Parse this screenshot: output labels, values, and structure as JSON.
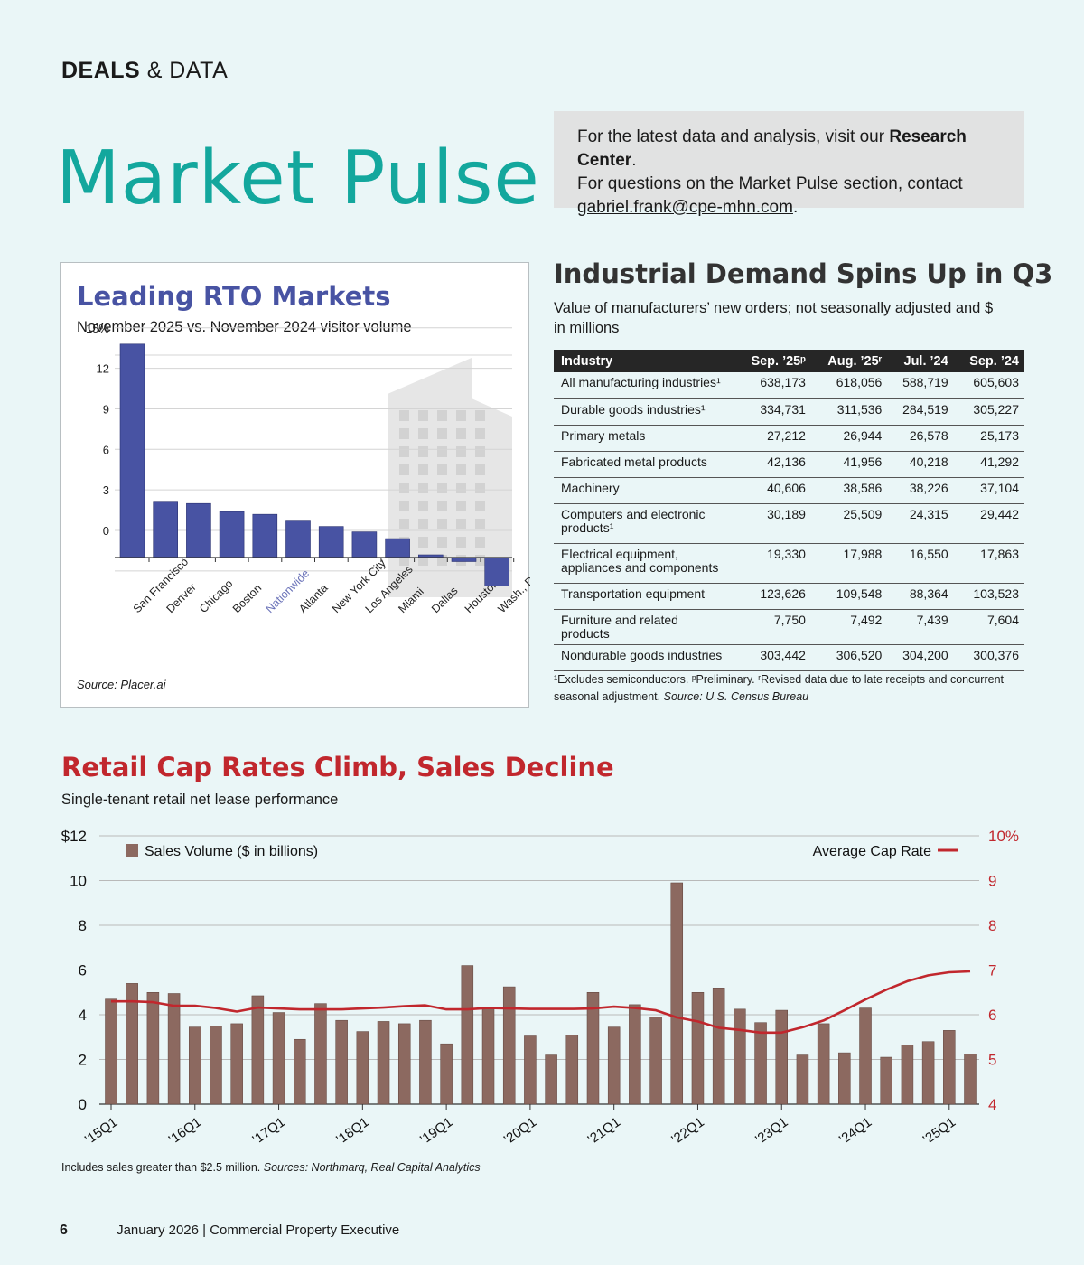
{
  "header": {
    "section_bold": "DEALS",
    "section_rest": "& DATA",
    "title": "Market Pulse"
  },
  "info": {
    "line1_pre": "For the latest data and analysis, visit our ",
    "line1_bold": "Research Center",
    "line1_post": ".",
    "line2": "For questions on the Market Pulse section, contact",
    "email": "gabriel.frank@cpe-mhn.com",
    "email_post": "."
  },
  "colors": {
    "teal": "#13a79d",
    "rto_bar": "#4853a3",
    "retail_red": "#c1272d",
    "retail_bar": "#8c6960",
    "cap_line": "#c1272d"
  },
  "rto": {
    "title": "Leading RTO Markets",
    "subtitle": "November 2025 vs. November 2024 visitor volume",
    "source": "Source: Placer.ai"
  },
  "industrial": {
    "title": "Industrial Demand Spins Up in Q3",
    "subtitle": "Value of manufacturers’ new orders; not seasonally adjusted and $ in millions",
    "headers": [
      "Industry",
      "Sep. ’25ᵖ",
      "Aug. ’25ʳ",
      "Jul. ’24",
      "Sep. ’24"
    ],
    "rows": [
      [
        "All manufacturing industries¹",
        "638,173",
        "618,056",
        "588,719",
        "605,603"
      ],
      [
        "Durable goods industries¹",
        "334,731",
        "311,536",
        "284,519",
        "305,227"
      ],
      [
        "Primary metals",
        "27,212",
        "26,944",
        "26,578",
        "25,173"
      ],
      [
        "Fabricated metal products",
        "42,136",
        "41,956",
        "40,218",
        "41,292"
      ],
      [
        "Machinery",
        "40,606",
        "38,586",
        "38,226",
        "37,104"
      ],
      [
        "Computers and electronic products¹",
        "30,189",
        "25,509",
        "24,315",
        "29,442"
      ],
      [
        "Electrical equipment, appliances and components",
        "19,330",
        "17,988",
        "16,550",
        "17,863"
      ],
      [
        "Transportation equipment",
        "123,626",
        "109,548",
        "88,364",
        "103,523"
      ],
      [
        "Furniture and related products",
        "7,750",
        "7,492",
        "7,439",
        "7,604"
      ],
      [
        "Nondurable goods industries",
        "303,442",
        "306,520",
        "304,200",
        "300,376"
      ]
    ],
    "note": "¹Excludes semiconductors. ᵖPreliminary. ʳRevised data due to late receipts and concurrent seasonal adjustment.",
    "source": "Source: U.S. Census Bureau"
  },
  "retail": {
    "title": "Retail Cap Rates Climb, Sales Decline",
    "subtitle": "Single-tenant retail net lease performance",
    "note": "Includes sales greater than $2.5 million.",
    "sources": "Sources: Northmarq, Real Capital Analytics"
  },
  "footer": {
    "page": "6",
    "text": "January 2026  |  Commercial Property Executive"
  },
  "chart_data": [
    {
      "type": "bar",
      "title": "Leading RTO Markets",
      "subtitle": "November 2025 vs. November 2024 visitor volume",
      "categories": [
        "San Francisco",
        "Denver",
        "Chicago",
        "Boston",
        "Nationwide",
        "Atlanta",
        "New York City",
        "Los Angeles",
        "Miami",
        "Dallas",
        "Houston",
        "Wash., D.C."
      ],
      "values": [
        15.8,
        4.1,
        4.0,
        3.4,
        3.2,
        2.7,
        2.3,
        1.9,
        1.4,
        0.2,
        -0.3,
        -2.1
      ],
      "y_ticks": [
        "0",
        "3",
        "6",
        "9",
        "12",
        "15%"
      ],
      "ylim": [
        -3,
        16
      ],
      "highlight": "Nationwide",
      "grid": true
    },
    {
      "type": "bar+line",
      "title": "Retail Cap Rates Climb, Sales Decline",
      "x_labels": [
        "’15Q1",
        "’16Q1",
        "’17Q1",
        "’18Q1",
        "’19Q1",
        "’20Q1",
        "’21Q1",
        "’22Q1",
        "’23Q1",
        "’24Q1",
        "’25Q1"
      ],
      "quarters_per_label": 4,
      "series": [
        {
          "name": "Sales Volume ($ in billions)",
          "axis": "left",
          "type": "bar",
          "values": [
            4.7,
            5.4,
            5.0,
            4.95,
            3.45,
            3.5,
            3.6,
            4.85,
            4.1,
            2.9,
            4.5,
            3.75,
            3.25,
            3.7,
            3.6,
            3.75,
            2.7,
            6.2,
            4.35,
            5.25,
            3.05,
            2.2,
            3.1,
            5.0,
            3.45,
            4.45,
            3.9,
            9.9,
            5.0,
            5.2,
            4.25,
            3.65,
            4.2,
            2.2,
            3.6,
            2.3,
            4.3,
            2.1,
            2.65,
            2.8,
            3.3,
            2.25
          ]
        },
        {
          "name": "Average Cap Rate",
          "axis": "right",
          "type": "line",
          "values": [
            6.3,
            6.3,
            6.28,
            6.2,
            6.2,
            6.15,
            6.07,
            6.16,
            6.14,
            6.12,
            6.12,
            6.12,
            6.14,
            6.16,
            6.19,
            6.21,
            6.12,
            6.12,
            6.15,
            6.14,
            6.13,
            6.13,
            6.13,
            6.14,
            6.18,
            6.15,
            6.1,
            5.94,
            5.85,
            5.71,
            5.66,
            5.6,
            5.6,
            5.72,
            5.87,
            6.1,
            6.34,
            6.56,
            6.75,
            6.88,
            6.95,
            6.97
          ]
        }
      ],
      "y_left_ticks": [
        "0",
        "2",
        "4",
        "6",
        "8",
        "10",
        "$12"
      ],
      "y_left_range": [
        0,
        12
      ],
      "y_right_ticks": [
        "4",
        "5",
        "6",
        "7",
        "8",
        "9",
        "10%"
      ],
      "y_right_range": [
        4,
        10
      ],
      "legend": "top"
    }
  ]
}
